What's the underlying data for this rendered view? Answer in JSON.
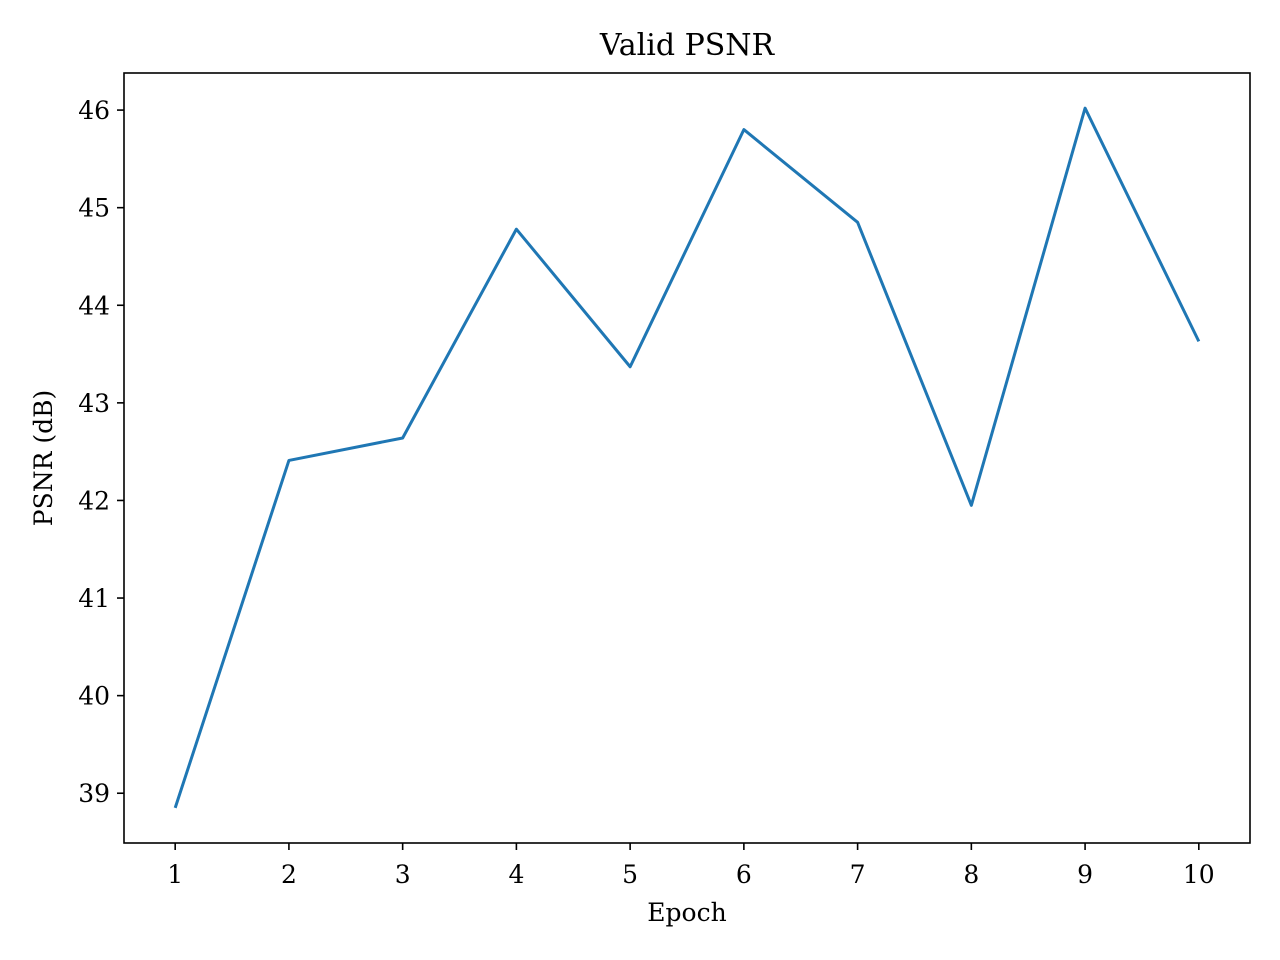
{
  "chart_data": {
    "type": "line",
    "title": "Valid PSNR",
    "xlabel": "Epoch",
    "ylabel": "PSNR (dB)",
    "x": [
      1,
      2,
      3,
      4,
      5,
      6,
      7,
      8,
      9,
      10
    ],
    "series": [
      {
        "values": [
          38.85,
          42.41,
          42.64,
          44.78,
          43.37,
          45.8,
          44.85,
          41.95,
          46.02,
          43.63
        ],
        "color": "#1f77b4"
      }
    ],
    "xlim": [
      0.55,
      10.45
    ],
    "ylim": [
      38.49,
      46.38
    ],
    "xticks": [
      1,
      2,
      3,
      4,
      5,
      6,
      7,
      8,
      9,
      10
    ],
    "yticks": [
      39,
      40,
      41,
      42,
      43,
      44,
      45,
      46
    ],
    "grid": false,
    "legend": "none"
  }
}
